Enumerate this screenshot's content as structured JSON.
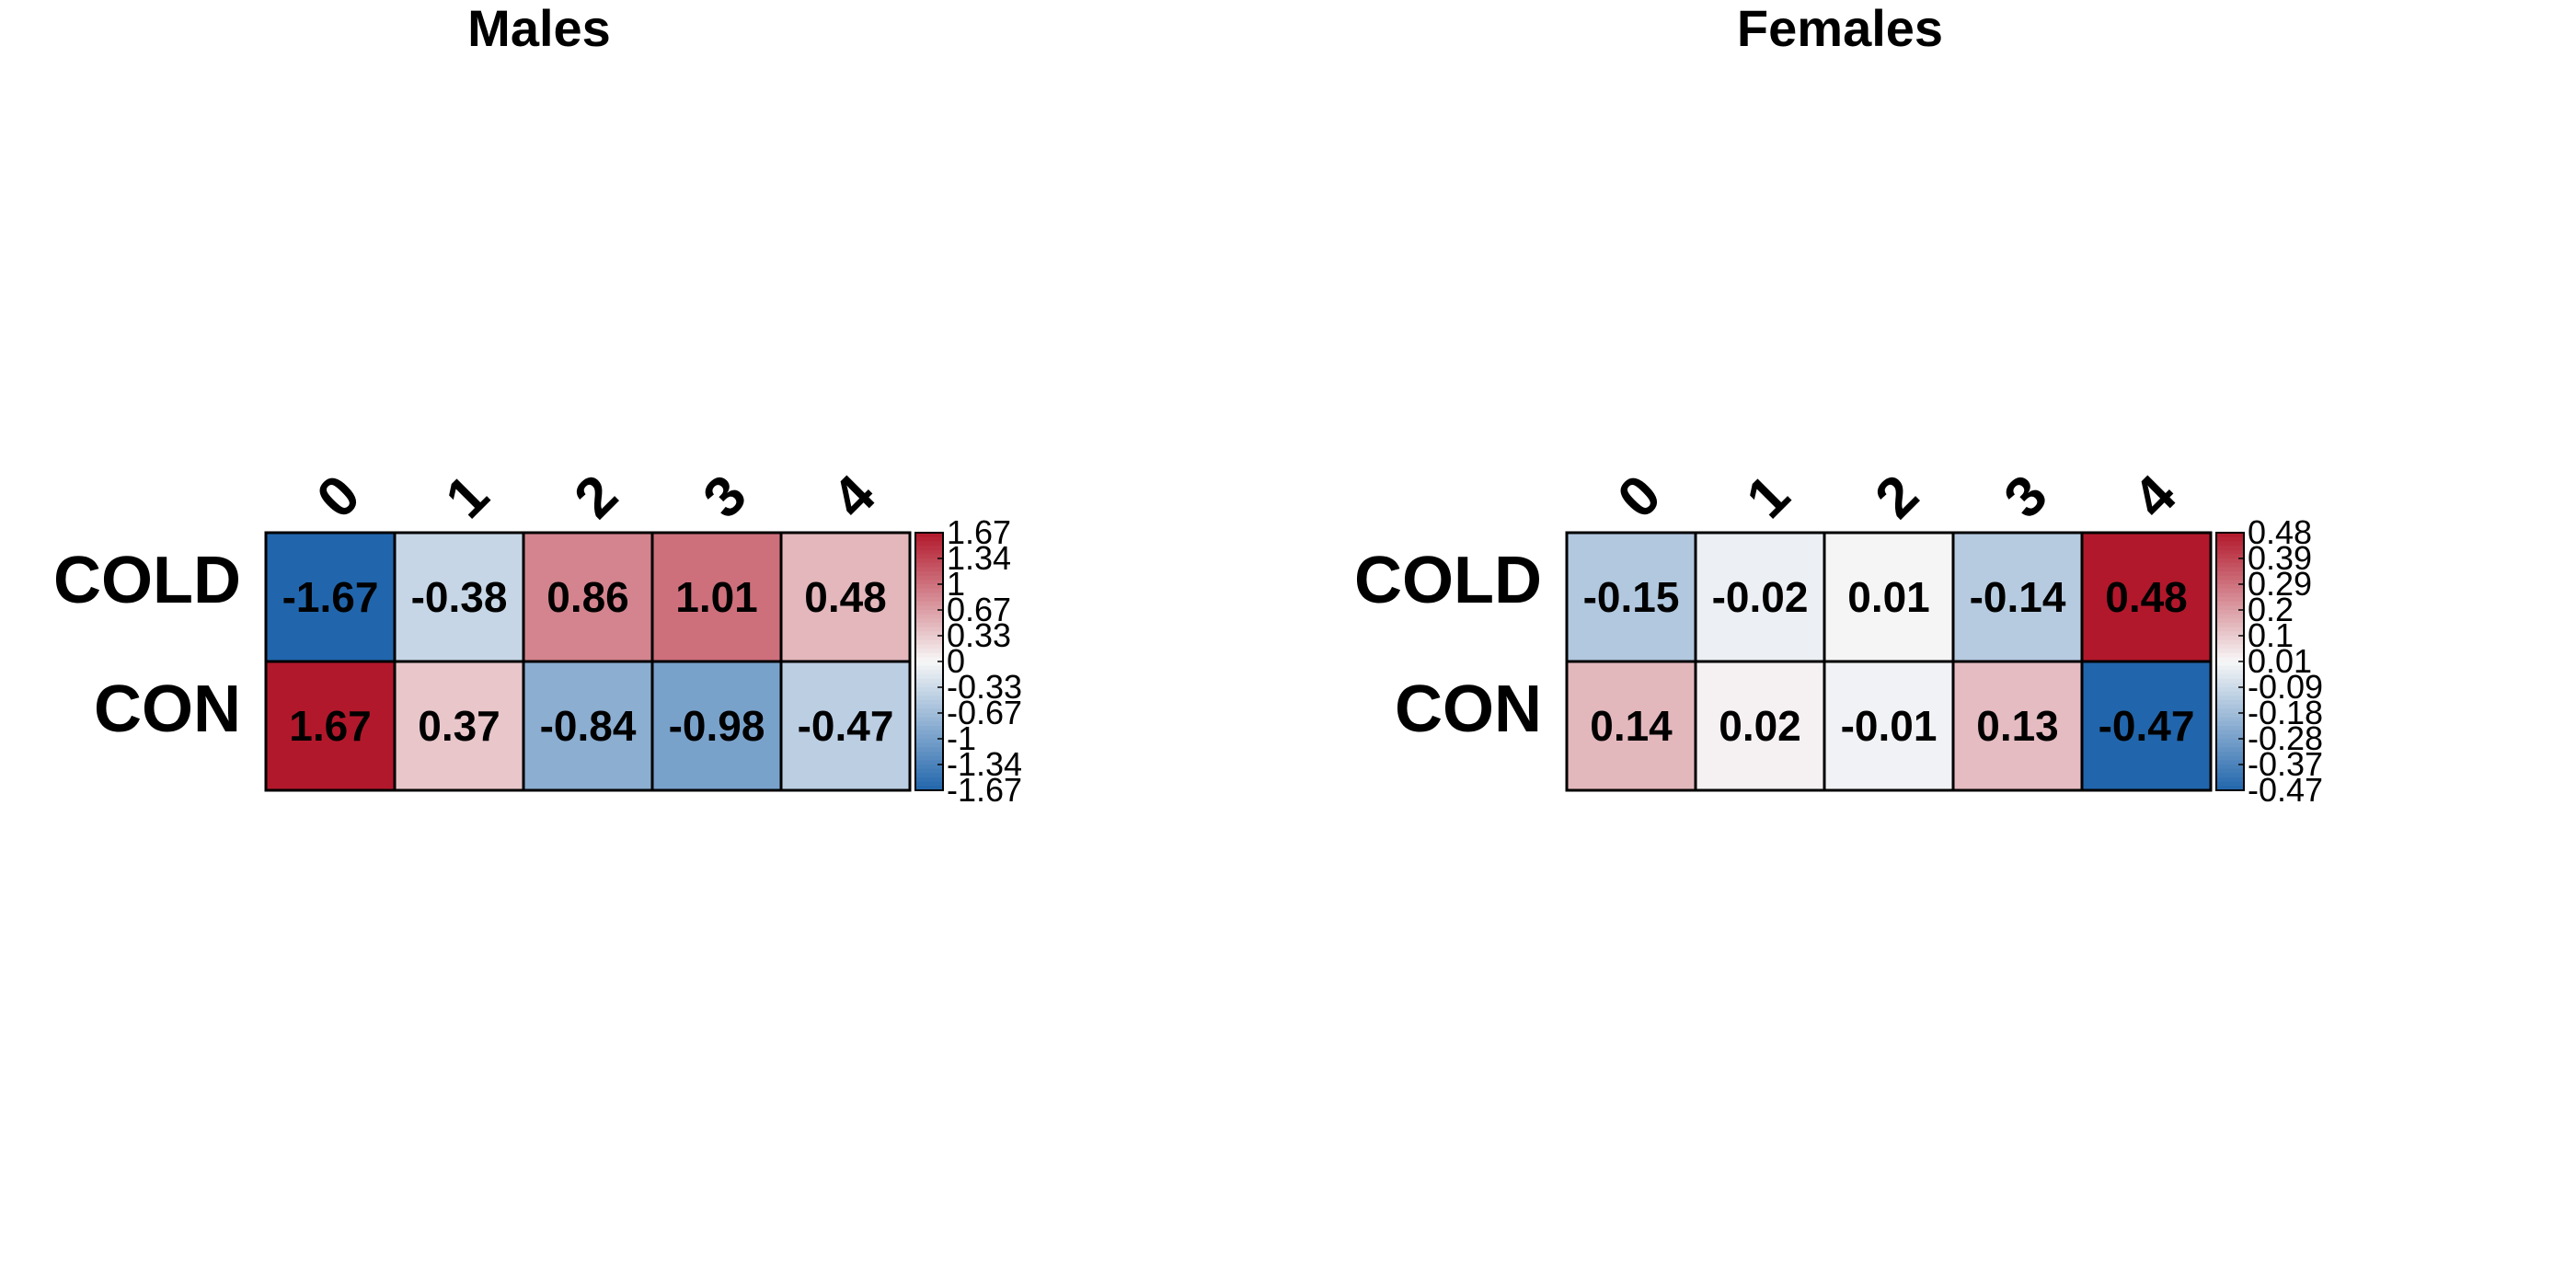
{
  "chart_data": [
    {
      "type": "heatmap",
      "title": "Males",
      "rows": [
        "COLD",
        "CON"
      ],
      "columns": [
        "0",
        "1",
        "2",
        "3",
        "4"
      ],
      "values": [
        [
          -1.67,
          -0.38,
          0.86,
          1.01,
          0.48
        ],
        [
          1.67,
          0.37,
          -0.84,
          -0.98,
          -0.47
        ]
      ],
      "cell_labels": [
        [
          "-1.67",
          "-0.38",
          "0.86",
          "1.01",
          "0.48"
        ],
        [
          "1.67",
          "0.37",
          "-0.84",
          "-0.98",
          "-0.47"
        ]
      ],
      "color_range": [
        -1.67,
        1.67
      ],
      "colorbar_ticks": [
        "1.67",
        "1.34",
        "1",
        "0.67",
        "0.33",
        "0",
        "-0.33",
        "-0.67",
        "-1",
        "-1.34",
        "-1.67"
      ]
    },
    {
      "type": "heatmap",
      "title": "Females",
      "rows": [
        "COLD",
        "CON"
      ],
      "columns": [
        "0",
        "1",
        "2",
        "3",
        "4"
      ],
      "values": [
        [
          -0.15,
          -0.02,
          0.01,
          -0.14,
          0.48
        ],
        [
          0.14,
          0.02,
          -0.01,
          0.13,
          -0.47
        ]
      ],
      "cell_labels": [
        [
          "-0.15",
          "-0.02",
          "0.01",
          "-0.14",
          "0.48"
        ],
        [
          "0.14",
          "0.02",
          "-0.01",
          "0.13",
          "-0.47"
        ]
      ],
      "color_range": [
        -0.47,
        0.48
      ],
      "colorbar_ticks": [
        "0.48",
        "0.39",
        "0.29",
        "0.2",
        "0.1",
        "0.01",
        "-0.09",
        "-0.18",
        "-0.28",
        "-0.37",
        "-0.47"
      ]
    }
  ],
  "colors": {
    "low": "#2166ac",
    "mid": "#f7f7f7",
    "high": "#b2182b",
    "cell_border": "#000000"
  }
}
